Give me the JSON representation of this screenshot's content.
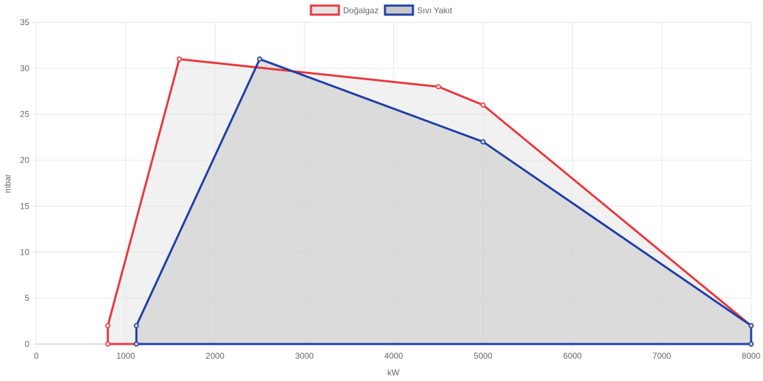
{
  "chart_data": {
    "type": "area",
    "xlabel": "kW",
    "ylabel": "mbar",
    "xlim": [
      0,
      8000
    ],
    "ylim": [
      0,
      35
    ],
    "x_ticks": [
      "0",
      "1000",
      "2000",
      "3000",
      "4000",
      "5000",
      "6000",
      "7000",
      "8000"
    ],
    "y_ticks": [
      "0",
      "5",
      "10",
      "15",
      "20",
      "25",
      "30",
      "35"
    ],
    "grid": true,
    "legend": "top-center",
    "series": [
      {
        "name": "Doğalgaz",
        "color": "#e8383d",
        "fill": "#e5e5e5",
        "points": [
          [
            800,
            0
          ],
          [
            800,
            2
          ],
          [
            1600,
            31
          ],
          [
            4500,
            28
          ],
          [
            5000,
            26
          ],
          [
            8000,
            2
          ],
          [
            8000,
            0
          ],
          [
            800,
            0
          ]
        ]
      },
      {
        "name": "Sıvı Yakıt",
        "color": "#1f3ea8",
        "fill": "#c8c8c8",
        "points": [
          [
            1120,
            0
          ],
          [
            1120,
            2
          ],
          [
            2500,
            31
          ],
          [
            5000,
            22
          ],
          [
            8000,
            2
          ],
          [
            8000,
            0
          ],
          [
            1120,
            0
          ]
        ]
      }
    ]
  }
}
